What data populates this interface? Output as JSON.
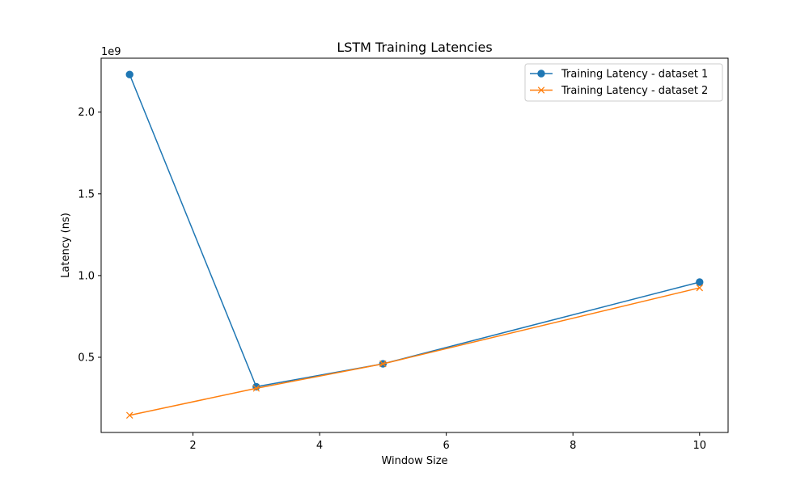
{
  "chart_data": {
    "type": "line",
    "title": "LSTM Training Latencies",
    "xlabel": "Window Size",
    "ylabel": "Latency (ns)",
    "y_offset_label": "1e9",
    "xlim": [
      0.55,
      10.45
    ],
    "ylim": [
      0.04,
      2.33
    ],
    "y_scale_factor": 1000000000,
    "x_ticks": [
      2,
      4,
      6,
      8,
      10
    ],
    "x_tick_labels": [
      "2",
      "4",
      "6",
      "8",
      "10"
    ],
    "y_ticks": [
      0.5,
      1.0,
      1.5,
      2.0
    ],
    "y_tick_labels": [
      "0.5",
      "1.0",
      "1.5",
      "2.0"
    ],
    "grid": false,
    "legend_position": "top-right",
    "series": [
      {
        "name": "Training Latency - dataset 1",
        "color": "#1f77b4",
        "marker": "circle",
        "x": [
          1,
          3,
          5,
          10
        ],
        "y": [
          2.23,
          0.32,
          0.46,
          0.96
        ]
      },
      {
        "name": "Training Latency - dataset 2",
        "color": "#ff7f0e",
        "marker": "x",
        "x": [
          1,
          3,
          5,
          10
        ],
        "y": [
          0.145,
          0.31,
          0.46,
          0.925
        ]
      }
    ]
  }
}
